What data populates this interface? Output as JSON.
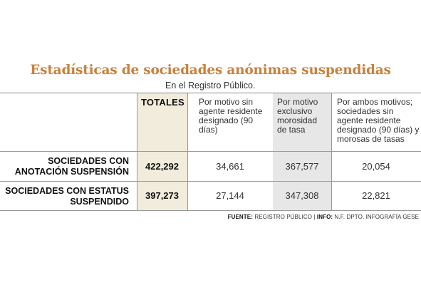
{
  "title": "Estadísticas de sociedades anónimas suspendidas",
  "subtitle": "En el Registro Público.",
  "columns": {
    "totales": "TOTALES",
    "motivo_agente": "Por motivo sin agente residente designado (90 días)",
    "motivo_morosidad": "Por motivo exclusivo morosidad de tasa",
    "ambos_motivos": "Por ambos motivos; sociedades sin agente residente designado (90 días) y morosas de tasas"
  },
  "rows": [
    {
      "label_line1": "SOCIEDADES CON",
      "label_line2": "ANOTACIÓN SUSPENSIÓN",
      "totales": "422,292",
      "motivo_agente": "34,661",
      "motivo_morosidad": "367,577",
      "ambos_motivos": "20,054"
    },
    {
      "label_line1": "SOCIEDADES CON ESTATUS",
      "label_line2": "SUSPENDIDO",
      "totales": "397,273",
      "motivo_agente": "27,144",
      "motivo_morosidad": "347,308",
      "ambos_motivos": "22,821"
    }
  ],
  "source": {
    "fuente_label": "FUENTE:",
    "fuente_text": "REGISTRO PÚBLICO",
    "separator": "|",
    "info_label": "INFO:",
    "info_text": "N.F. DPTO. INFOGRAFÍA GESE"
  }
}
